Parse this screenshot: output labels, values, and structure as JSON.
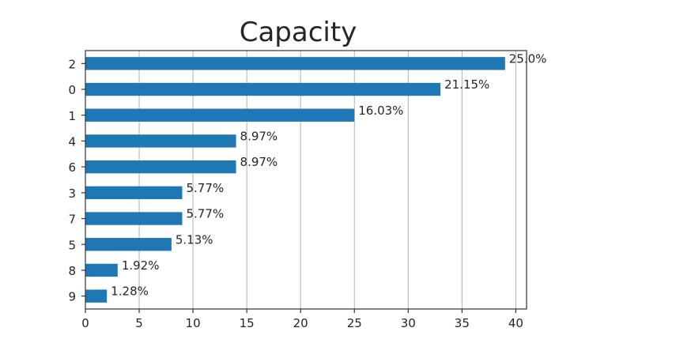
{
  "chart_data": {
    "type": "bar",
    "orientation": "horizontal",
    "title": "Capacity",
    "xlabel": "",
    "ylabel": "",
    "categories": [
      "2",
      "0",
      "1",
      "4",
      "6",
      "3",
      "7",
      "5",
      "8",
      "9"
    ],
    "values": [
      39,
      33,
      25,
      14,
      14,
      9,
      9,
      8,
      3,
      2
    ],
    "data_labels": [
      "25.0%",
      "21.15%",
      "16.03%",
      "8.97%",
      "8.97%",
      "5.77%",
      "5.77%",
      "5.13%",
      "1.92%",
      "1.28%"
    ],
    "xlim": [
      0,
      41
    ],
    "xticks": [
      0,
      5,
      10,
      15,
      20,
      25,
      30,
      35,
      40
    ],
    "grid": "vertical",
    "legend": "none",
    "bar_color": "#1f77b4"
  }
}
